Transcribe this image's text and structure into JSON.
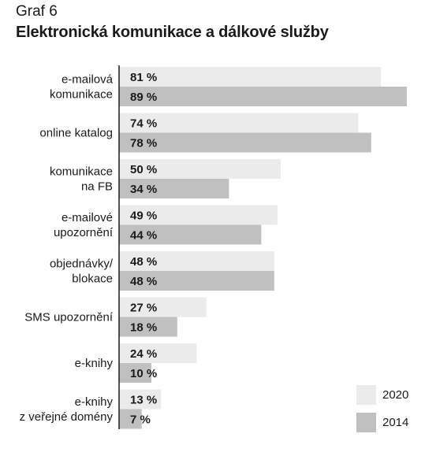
{
  "header": {
    "graf_number": "Graf 6",
    "title": "Elektronická komunikace a dálkové služby"
  },
  "colors": {
    "series_2020": "#ebebeb",
    "series_2014": "#c0c0c0",
    "axis": "#1a1a1a"
  },
  "chart_data": {
    "type": "bar",
    "orientation": "horizontal",
    "title": "Elektronická komunikace a dálkové služby",
    "xlabel": "",
    "ylabel": "",
    "xlim": [
      0,
      100
    ],
    "grid": false,
    "legend_position": "bottom-right",
    "categories": [
      [
        "e-mailová",
        "komunikace"
      ],
      [
        "online katalog"
      ],
      [
        "komunikace",
        "na FB"
      ],
      [
        "e-mailové",
        "upozornění"
      ],
      [
        "objednávky/",
        "blokace"
      ],
      [
        "SMS upozornění"
      ],
      [
        "e-knihy"
      ],
      [
        "e-knihy",
        "z veřejné domény"
      ]
    ],
    "series": [
      {
        "name": "2020",
        "values": [
          81,
          74,
          50,
          49,
          48,
          27,
          24,
          13
        ],
        "labels": [
          "81 %",
          "74 %",
          "50 %",
          "49 %",
          "48 %",
          "27 %",
          "24 %",
          "13 %"
        ]
      },
      {
        "name": "2014",
        "values": [
          89,
          78,
          34,
          44,
          48,
          18,
          10,
          7
        ],
        "labels": [
          "89 %",
          "78 %",
          "34 %",
          "44 %",
          "48 %",
          "18 %",
          "10 %",
          "7 %"
        ]
      }
    ]
  }
}
